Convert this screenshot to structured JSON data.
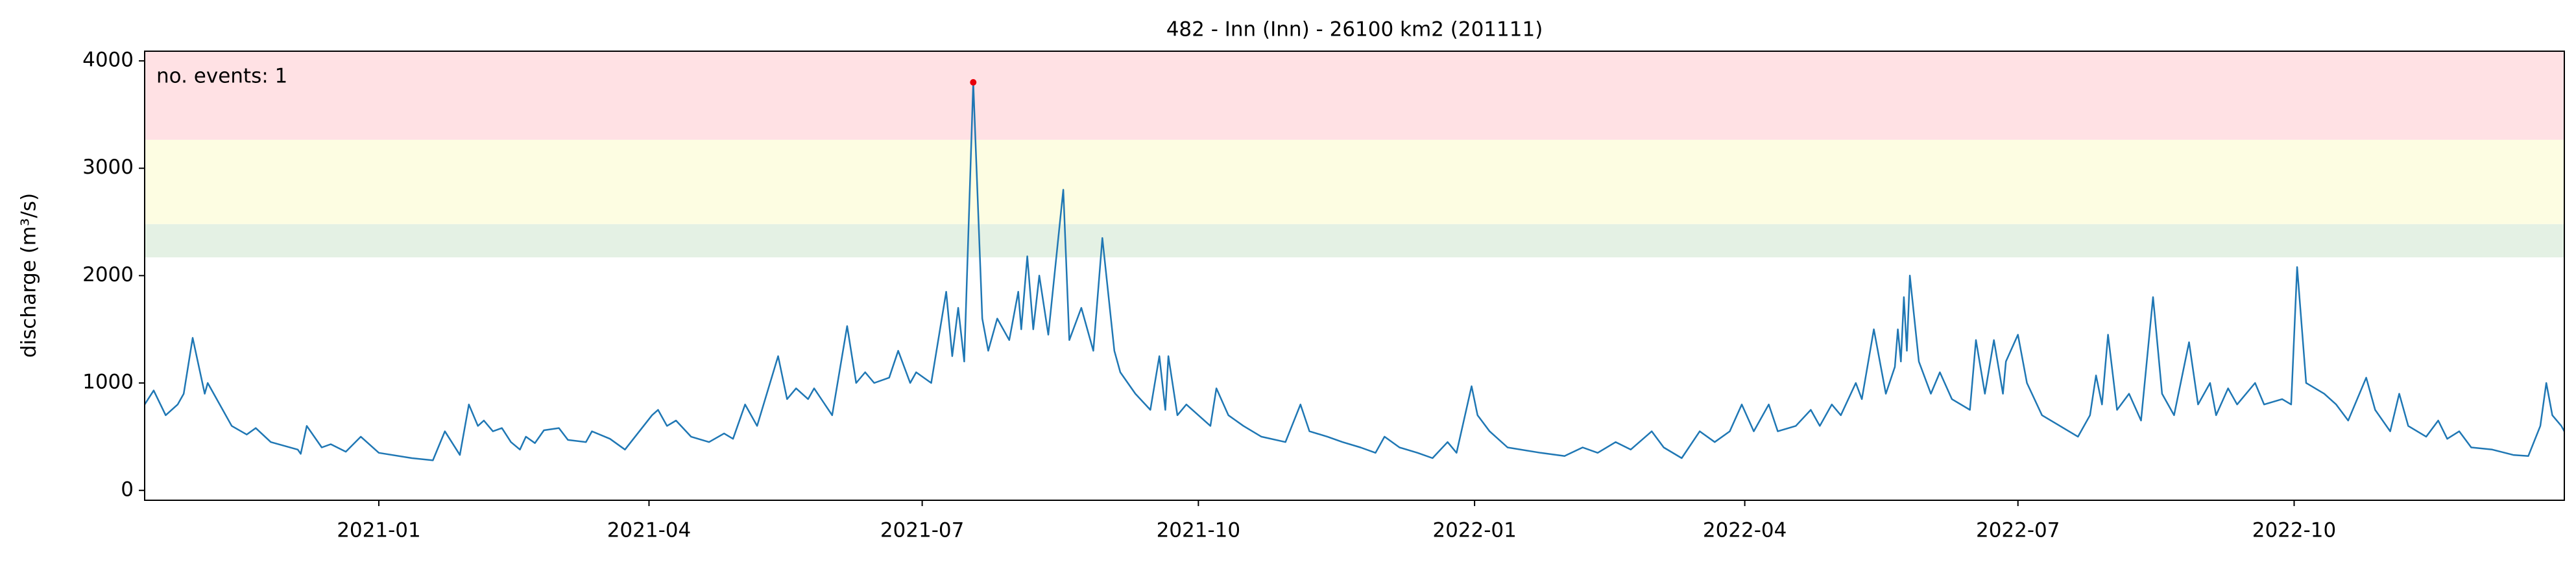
{
  "chart_data": {
    "type": "line",
    "title": "482 - Inn (Inn) - 26100 km2 (201111)",
    "ylabel": "discharge (m³/s)",
    "annotation": "no. events: 1",
    "annotation_color": "#e8000b",
    "xlim": [
      "2020-10-15",
      "2022-12-30"
    ],
    "ylim": [
      -92,
      4090
    ],
    "yticks": [
      0,
      1000,
      2000,
      3000,
      4000
    ],
    "xticks": [
      {
        "value": "2021-01-01",
        "label": "2021-01"
      },
      {
        "value": "2021-04-01",
        "label": "2021-04"
      },
      {
        "value": "2021-07-01",
        "label": "2021-07"
      },
      {
        "value": "2021-10-01",
        "label": "2021-10"
      },
      {
        "value": "2022-01-01",
        "label": "2022-01"
      },
      {
        "value": "2022-04-01",
        "label": "2022-04"
      },
      {
        "value": "2022-07-01",
        "label": "2022-07"
      },
      {
        "value": "2022-10-01",
        "label": "2022-10"
      }
    ],
    "bands": [
      {
        "from": 2170,
        "to": 2480,
        "color": "#e4f1e4"
      },
      {
        "from": 2480,
        "to": 3265,
        "color": "#fdfde2"
      },
      {
        "from": 3265,
        "to": 4090,
        "color": "#ffe1e4"
      }
    ],
    "events": [
      {
        "x": "2021-07-18",
        "value": 3800,
        "color": "#e8000b"
      }
    ],
    "x": [
      "2020-10-15",
      "2020-10-18",
      "2020-10-22",
      "2020-10-26",
      "2020-10-28",
      "2020-10-31",
      "2020-11-04",
      "2020-11-05",
      "2020-11-13",
      "2020-11-18",
      "2020-11-21",
      "2020-11-26",
      "2020-12-05",
      "2020-12-06",
      "2020-12-08",
      "2020-12-13",
      "2020-12-16",
      "2020-12-21",
      "2020-12-26",
      "2021-01-01",
      "2021-01-12",
      "2021-01-19",
      "2021-01-23",
      "2021-01-28",
      "2021-01-31",
      "2021-02-03",
      "2021-02-05",
      "2021-02-08",
      "2021-02-11",
      "2021-02-14",
      "2021-02-17",
      "2021-02-19",
      "2021-02-22",
      "2021-02-25",
      "2021-03-02",
      "2021-03-05",
      "2021-03-11",
      "2021-03-13",
      "2021-03-19",
      "2021-03-24",
      "2021-04-02",
      "2021-04-04",
      "2021-04-07",
      "2021-04-10",
      "2021-04-15",
      "2021-04-21",
      "2021-04-26",
      "2021-04-29",
      "2021-05-03",
      "2021-05-07",
      "2021-05-14",
      "2021-05-17",
      "2021-05-20",
      "2021-05-24",
      "2021-05-26",
      "2021-06-01",
      "2021-06-06",
      "2021-06-09",
      "2021-06-12",
      "2021-06-15",
      "2021-06-20",
      "2021-06-23",
      "2021-06-27",
      "2021-06-29",
      "2021-07-04",
      "2021-07-09",
      "2021-07-11",
      "2021-07-13",
      "2021-07-15",
      "2021-07-18",
      "2021-07-21",
      "2021-07-23",
      "2021-07-26",
      "2021-07-30",
      "2021-08-02",
      "2021-08-03",
      "2021-08-05",
      "2021-08-07",
      "2021-08-09",
      "2021-08-12",
      "2021-08-17",
      "2021-08-19",
      "2021-08-23",
      "2021-08-27",
      "2021-08-30",
      "2021-09-03",
      "2021-09-05",
      "2021-09-10",
      "2021-09-15",
      "2021-09-18",
      "2021-09-20",
      "2021-09-21",
      "2021-09-24",
      "2021-09-27",
      "2021-10-05",
      "2021-10-07",
      "2021-10-11",
      "2021-10-16",
      "2021-10-22",
      "2021-10-30",
      "2021-11-04",
      "2021-11-07",
      "2021-11-13",
      "2021-11-18",
      "2021-11-24",
      "2021-11-29",
      "2021-12-02",
      "2021-12-07",
      "2021-12-13",
      "2021-12-18",
      "2021-12-23",
      "2021-12-26",
      "2021-12-31",
      "2022-01-02",
      "2022-01-06",
      "2022-01-12",
      "2022-01-23",
      "2022-01-31",
      "2022-02-06",
      "2022-02-11",
      "2022-02-17",
      "2022-02-22",
      "2022-03-01",
      "2022-03-05",
      "2022-03-11",
      "2022-03-17",
      "2022-03-22",
      "2022-03-27",
      "2022-03-31",
      "2022-04-04",
      "2022-04-09",
      "2022-04-12",
      "2022-04-18",
      "2022-04-23",
      "2022-04-26",
      "2022-04-30",
      "2022-05-03",
      "2022-05-08",
      "2022-05-10",
      "2022-05-14",
      "2022-05-18",
      "2022-05-21",
      "2022-05-22",
      "2022-05-23",
      "2022-05-24",
      "2022-05-25",
      "2022-05-26",
      "2022-05-29",
      "2022-06-02",
      "2022-06-05",
      "2022-06-09",
      "2022-06-15",
      "2022-06-17",
      "2022-06-20",
      "2022-06-23",
      "2022-06-26",
      "2022-06-27",
      "2022-07-01",
      "2022-07-04",
      "2022-07-09",
      "2022-07-15",
      "2022-07-21",
      "2022-07-25",
      "2022-07-27",
      "2022-07-29",
      "2022-07-31",
      "2022-08-03",
      "2022-08-07",
      "2022-08-11",
      "2022-08-15",
      "2022-08-18",
      "2022-08-22",
      "2022-08-27",
      "2022-08-30",
      "2022-09-03",
      "2022-09-05",
      "2022-09-09",
      "2022-09-12",
      "2022-09-18",
      "2022-09-21",
      "2022-09-27",
      "2022-09-30",
      "2022-10-02",
      "2022-10-05",
      "2022-10-11",
      "2022-10-15",
      "2022-10-19",
      "2022-10-25",
      "2022-10-28",
      "2022-11-02",
      "2022-11-05",
      "2022-11-08",
      "2022-11-14",
      "2022-11-18",
      "2022-11-21",
      "2022-11-25",
      "2022-11-29",
      "2022-12-06",
      "2022-12-13",
      "2022-12-18",
      "2022-12-22",
      "2022-12-24",
      "2022-12-26",
      "2022-12-29",
      "2022-12-30"
    ],
    "series": [
      {
        "color": "#1f77b4",
        "values": [
          800,
          930,
          700,
          800,
          900,
          1420,
          900,
          1000,
          600,
          520,
          580,
          450,
          380,
          340,
          600,
          400,
          430,
          360,
          500,
          350,
          300,
          280,
          550,
          330,
          800,
          600,
          650,
          550,
          580,
          450,
          380,
          500,
          440,
          560,
          580,
          470,
          450,
          550,
          480,
          380,
          700,
          750,
          600,
          650,
          500,
          450,
          530,
          480,
          800,
          600,
          1250,
          850,
          950,
          850,
          950,
          700,
          1530,
          1000,
          1100,
          1000,
          1050,
          1300,
          1000,
          1100,
          1000,
          1850,
          1250,
          1700,
          1200,
          3800,
          1600,
          1300,
          1600,
          1400,
          1850,
          1500,
          2180,
          1500,
          2000,
          1450,
          2800,
          1400,
          1700,
          1300,
          2350,
          1300,
          1100,
          900,
          750,
          1250,
          750,
          1250,
          700,
          800,
          600,
          950,
          700,
          600,
          500,
          450,
          800,
          550,
          500,
          450,
          400,
          350,
          500,
          400,
          350,
          300,
          450,
          350,
          970,
          700,
          550,
          400,
          350,
          320,
          400,
          350,
          450,
          380,
          550,
          400,
          300,
          550,
          450,
          550,
          800,
          550,
          800,
          550,
          600,
          750,
          600,
          800,
          700,
          1000,
          850,
          1500,
          900,
          1150,
          1500,
          1200,
          1800,
          1300,
          2000,
          1200,
          900,
          1100,
          850,
          750,
          1400,
          900,
          1400,
          900,
          1200,
          1450,
          1000,
          700,
          600,
          500,
          700,
          1070,
          800,
          1450,
          750,
          900,
          650,
          1800,
          900,
          700,
          1380,
          800,
          1000,
          700,
          950,
          800,
          1000,
          800,
          850,
          800,
          2080,
          1000,
          900,
          800,
          650,
          1050,
          750,
          550,
          900,
          600,
          500,
          650,
          480,
          550,
          400,
          380,
          330,
          320,
          600,
          1000,
          700,
          600,
          550
        ]
      }
    ]
  }
}
